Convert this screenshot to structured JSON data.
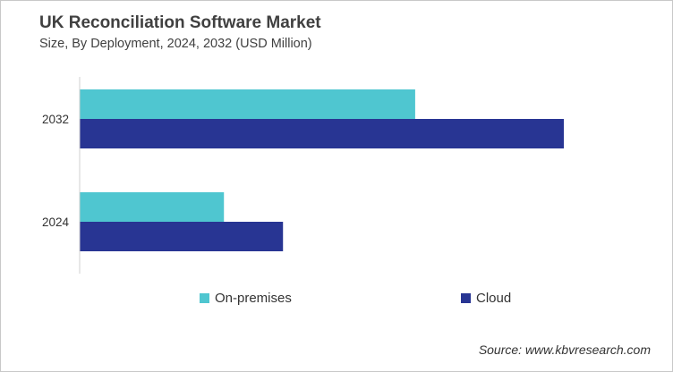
{
  "chart_data": {
    "type": "bar",
    "orientation": "horizontal",
    "title": "UK Reconciliation Software Market",
    "subtitle": "Size, By Deployment, 2024, 2032 (USD Million)",
    "categories": [
      "2032",
      "2024"
    ],
    "series": [
      {
        "name": "On-premises",
        "color": "#4FC6D0",
        "values": [
          69.3,
          29.8
        ]
      },
      {
        "name": "Cloud",
        "color": "#283593",
        "values": [
          100,
          42.0
        ]
      }
    ],
    "xlim": [
      0,
      100
    ],
    "value_note_hidden": true,
    "grid": false,
    "legend_position": "bottom",
    "source": "Source: www.kbvresearch.com"
  }
}
